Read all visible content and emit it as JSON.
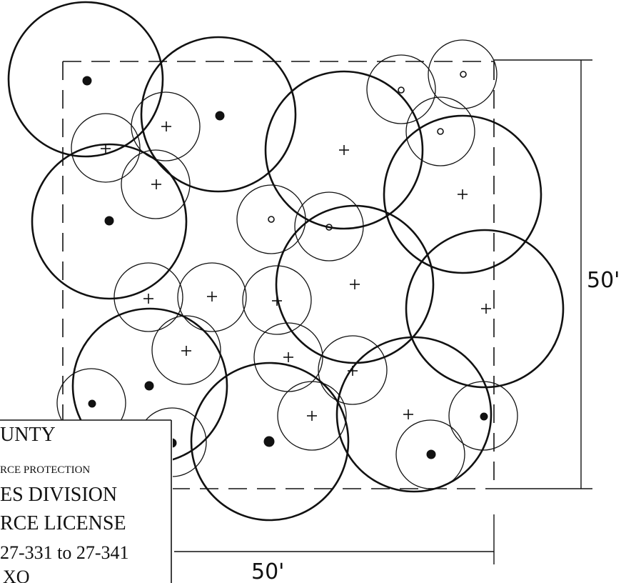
{
  "dimensions": {
    "vertical_label": "50'",
    "horizontal_label": "50'"
  },
  "stamp": {
    "line1": "UNTY",
    "line2": "RCE PROTECTION",
    "line3": "ES DIVISION",
    "line4": "RCE LICENSE",
    "line5": "27-331 to 27-341",
    "line6": "XO"
  },
  "colors": {
    "ink": "#111111",
    "background": "#ffffff"
  },
  "legend_markers": {
    "filled_dot": "large-tree-marker",
    "plus": "tree-center-marker",
    "small_circle": "sapling-marker"
  }
}
